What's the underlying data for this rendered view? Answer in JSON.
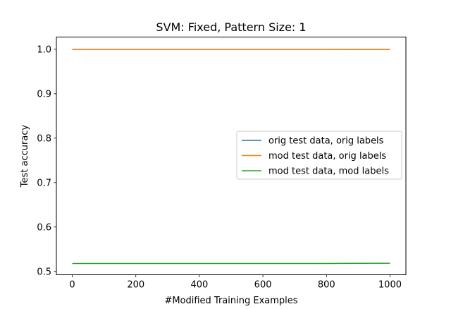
{
  "chart_data": {
    "type": "line",
    "title": "SVM: Fixed, Pattern Size: 1",
    "xlabel": "#Modified Training Examples",
    "ylabel": "Test accuracy",
    "xlim": [
      -50,
      1050
    ],
    "ylim": [
      0.4925,
      1.0275
    ],
    "xticks": [
      0,
      200,
      400,
      600,
      800,
      1000
    ],
    "yticks": [
      0.5,
      0.6,
      0.7,
      0.8,
      0.9,
      1.0
    ],
    "xtick_labels": [
      "0",
      "200",
      "400",
      "600",
      "800",
      "1000"
    ],
    "ytick_labels": [
      "0.5",
      "0.6",
      "0.7",
      "0.8",
      "0.9",
      "1.0"
    ],
    "grid": false,
    "legend_position": "center-right",
    "series": [
      {
        "name": "orig test data, orig labels",
        "color": "#1f77b4",
        "x": [
          0,
          100,
          200,
          300,
          400,
          500,
          600,
          700,
          800,
          900,
          1000
        ],
        "y": [
          1.0,
          1.0,
          1.0,
          1.0,
          1.0,
          1.0,
          1.0,
          1.0,
          1.0,
          0.9998,
          0.9998
        ]
      },
      {
        "name": "mod test data, orig labels",
        "color": "#ff7f0e",
        "x": [
          0,
          100,
          200,
          300,
          400,
          500,
          600,
          700,
          800,
          900,
          1000
        ],
        "y": [
          1.0,
          1.0,
          1.0,
          1.0,
          1.0,
          1.0,
          1.0,
          1.0,
          1.0,
          0.9998,
          0.9998
        ]
      },
      {
        "name": "mod test data, mod labels",
        "color": "#2ca02c",
        "x": [
          0,
          100,
          200,
          300,
          400,
          500,
          600,
          700,
          800,
          900,
          1000
        ],
        "y": [
          0.518,
          0.518,
          0.518,
          0.518,
          0.518,
          0.518,
          0.518,
          0.518,
          0.518,
          0.5182,
          0.5185
        ]
      }
    ]
  }
}
